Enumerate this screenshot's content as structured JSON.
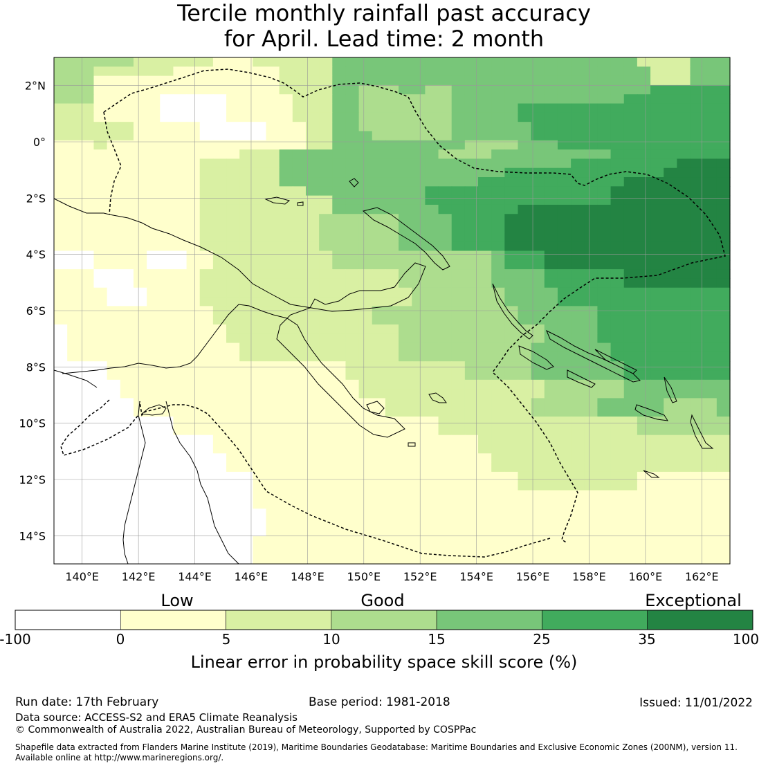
{
  "title": {
    "line1": "Tercile monthly rainfall past accuracy",
    "line2": "for April. Lead time: 2 month"
  },
  "map": {
    "lon_labels": [
      "140°E",
      "142°E",
      "144°E",
      "146°E",
      "148°E",
      "150°E",
      "152°E",
      "154°E",
      "156°E",
      "158°E",
      "160°E",
      "162°E"
    ],
    "lat_labels": [
      "2°N",
      "0°",
      "2°S",
      "4°S",
      "6°S",
      "8°S",
      "10°S",
      "12°S",
      "14°S"
    ],
    "lon_range": [
      139,
      163
    ],
    "lat_range": [
      -15,
      3
    ],
    "grid": true
  },
  "colorbar": {
    "levels": [
      "Low",
      "Good",
      "Exceptional"
    ],
    "ticks": [
      "-100",
      "0",
      "5",
      "10",
      "15",
      "25",
      "35",
      "100"
    ],
    "colors": [
      "#ffffff",
      "#ffffcc",
      "#d9f0a3",
      "#addd8e",
      "#78c679",
      "#41ab5d",
      "#238443"
    ],
    "label": "Linear error in probability space skill score (%)"
  },
  "footer": {
    "run_date": "Run date: 17th February",
    "base_period": "Base period: 1981-2018",
    "issued": "Issued: 11/01/2022",
    "data_source": "Data source: ACCESS-S2 and ERA5 Climate Reanalysis",
    "copyright": "© Commonwealth of Australia 2022, Australian Bureau of Meteorology, Supported by COSPPac",
    "shapefile1": "Shapefile data extracted from Flanders Marine Institute (2019), Maritime Boundaries Geodatabase: Maritime Boundaries and Exclusive Economic Zones (200NM), version 11.",
    "shapefile2": "Available online at http://www.marineregions.org/."
  }
}
